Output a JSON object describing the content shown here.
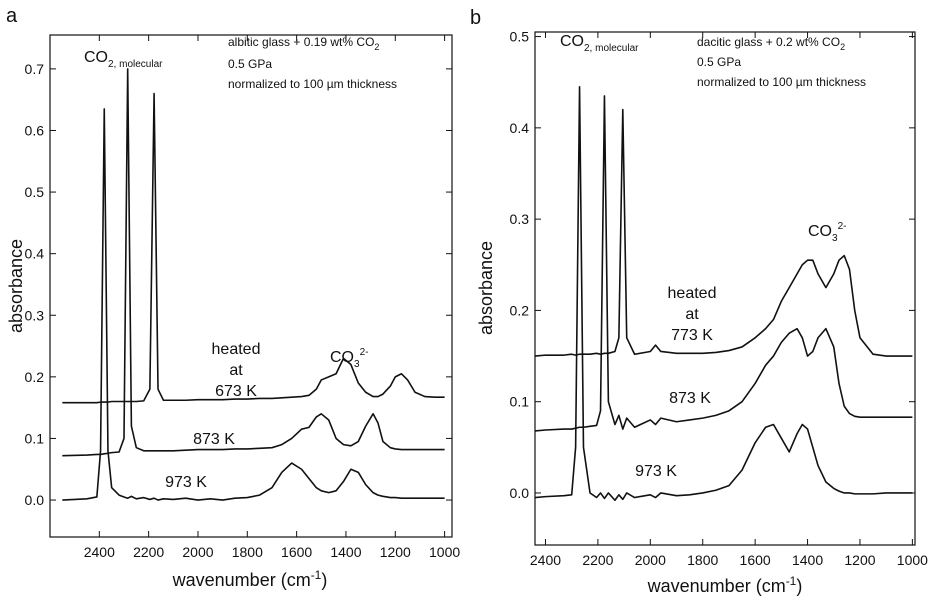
{
  "chart_data": [
    {
      "type": "line",
      "panel_label": "a",
      "peak_label": {
        "text": "CO",
        "sub": "2, molecular"
      },
      "sample": {
        "text": "albitic glass + 0.19 wt% CO",
        "sub": "2"
      },
      "notes": [
        "0.5 GPa",
        "normalized to 100 µm thickness"
      ],
      "heated": [
        "heated",
        "at"
      ],
      "carbonate": {
        "text": "CO",
        "sub": "3",
        "sup": "2-"
      },
      "ylabel": "absorbance",
      "xlabel": {
        "text": "wavenumber (cm",
        "sup": "-1",
        "tail": ")"
      },
      "xlim": [
        2600,
        970
      ],
      "ylim": [
        -0.06,
        0.755
      ],
      "xticks": [
        2400,
        2200,
        2000,
        1800,
        1600,
        1400,
        1200,
        1000
      ],
      "yticks": [
        {
          "value": 0,
          "label": "0.0"
        },
        0.1,
        0.2,
        0.3,
        0.4,
        0.5,
        0.6,
        0.7
      ],
      "grid": false,
      "x": [
        2550,
        2450,
        2410,
        2395,
        2380,
        2365,
        2350,
        2320,
        2300,
        2285,
        2270,
        2250,
        2220,
        2195,
        2178,
        2162,
        2140,
        2100,
        2050,
        2000,
        1950,
        1900,
        1850,
        1800,
        1750,
        1700,
        1660,
        1620,
        1580,
        1550,
        1520,
        1500,
        1470,
        1440,
        1410,
        1380,
        1350,
        1320,
        1290,
        1270,
        1250,
        1220,
        1200,
        1175,
        1150,
        1120,
        1080,
        1040,
        1000
      ],
      "series": [
        {
          "name": "973 K",
          "color": "#111111",
          "values": [
            0.0,
            0.002,
            0.005,
            0.08,
            0.635,
            0.08,
            0.02,
            0.008,
            0.005,
            0.003,
            0.006,
            0.002,
            0.004,
            0.001,
            0.003,
            0.0,
            0.002,
            0.001,
            0.003,
            0.0,
            0.002,
            0.0,
            0.003,
            0.004,
            0.008,
            0.02,
            0.045,
            0.06,
            0.05,
            0.035,
            0.02,
            0.015,
            0.012,
            0.015,
            0.03,
            0.05,
            0.045,
            0.025,
            0.012,
            0.008,
            0.006,
            0.004,
            0.004,
            0.003,
            0.003,
            0.003,
            0.003,
            0.003,
            0.003
          ]
        },
        {
          "name": "873 K",
          "color": "#111111",
          "values": [
            0.072,
            0.073,
            0.074,
            0.074,
            0.075,
            0.076,
            0.077,
            0.078,
            0.1,
            0.7,
            0.12,
            0.085,
            0.08,
            0.08,
            0.08,
            0.08,
            0.08,
            0.08,
            0.081,
            0.082,
            0.082,
            0.082,
            0.083,
            0.083,
            0.084,
            0.085,
            0.09,
            0.1,
            0.115,
            0.118,
            0.135,
            0.14,
            0.13,
            0.1,
            0.09,
            0.088,
            0.095,
            0.12,
            0.14,
            0.125,
            0.095,
            0.085,
            0.083,
            0.082,
            0.082,
            0.082,
            0.082,
            0.082,
            0.082
          ]
        },
        {
          "name": "673 K",
          "color": "#111111",
          "values": [
            0.158,
            0.158,
            0.158,
            0.159,
            0.159,
            0.159,
            0.16,
            0.16,
            0.16,
            0.16,
            0.16,
            0.16,
            0.161,
            0.18,
            0.66,
            0.18,
            0.162,
            0.162,
            0.162,
            0.163,
            0.163,
            0.163,
            0.164,
            0.164,
            0.165,
            0.165,
            0.166,
            0.167,
            0.168,
            0.17,
            0.18,
            0.195,
            0.2,
            0.205,
            0.23,
            0.22,
            0.19,
            0.175,
            0.168,
            0.168,
            0.172,
            0.185,
            0.2,
            0.205,
            0.195,
            0.175,
            0.168,
            0.167,
            0.167
          ]
        }
      ]
    },
    {
      "type": "line",
      "panel_label": "b",
      "peak_label": {
        "text": "CO",
        "sub": "2, molecular"
      },
      "sample": {
        "text": "dacitic glass + 0.2 wt% CO",
        "sub": "2"
      },
      "notes": [
        "0.5 GPa",
        "normalized to 100 µm thickness"
      ],
      "heated": [
        "heated",
        "at"
      ],
      "carbonate": {
        "text": "CO",
        "sub": "3",
        "sup": "2-"
      },
      "ylabel": "absorbance",
      "xlabel": {
        "text": "wavenumber (cm",
        "sup": "-1",
        "tail": ")"
      },
      "xlim": [
        2440,
        990
      ],
      "ylim": [
        -0.057,
        0.505
      ],
      "xticks": [
        2400,
        2200,
        2000,
        1800,
        1600,
        1400,
        1200,
        1000
      ],
      "yticks": [
        {
          "value": 0,
          "label": "0.0"
        },
        0.1,
        0.2,
        0.3,
        0.4,
        0.5
      ],
      "grid": false,
      "x": [
        2440,
        2400,
        2330,
        2300,
        2285,
        2270,
        2255,
        2230,
        2205,
        2190,
        2175,
        2160,
        2135,
        2120,
        2105,
        2090,
        2060,
        2000,
        1980,
        1960,
        1900,
        1850,
        1800,
        1750,
        1700,
        1650,
        1600,
        1560,
        1530,
        1500,
        1470,
        1440,
        1420,
        1400,
        1380,
        1360,
        1330,
        1300,
        1280,
        1260,
        1240,
        1220,
        1200,
        1150,
        1100,
        1050,
        1000
      ],
      "series": [
        {
          "name": "973 K",
          "color": "#111111",
          "values": [
            -0.005,
            -0.004,
            -0.003,
            -0.002,
            0.05,
            0.445,
            0.05,
            0.0,
            -0.005,
            0.0,
            -0.006,
            0.0,
            -0.008,
            -0.002,
            -0.007,
            0.0,
            -0.005,
            -0.002,
            -0.005,
            0.0,
            -0.003,
            -0.002,
            0.0,
            0.003,
            0.008,
            0.025,
            0.055,
            0.072,
            0.075,
            0.06,
            0.045,
            0.065,
            0.075,
            0.07,
            0.05,
            0.03,
            0.012,
            0.005,
            0.002,
            0.0,
            0.0,
            -0.001,
            -0.001,
            -0.001,
            0.0,
            0.0,
            0.0
          ]
        },
        {
          "name": "873 K",
          "color": "#111111",
          "values": [
            0.068,
            0.069,
            0.07,
            0.07,
            0.071,
            0.072,
            0.072,
            0.073,
            0.074,
            0.09,
            0.435,
            0.1,
            0.075,
            0.085,
            0.07,
            0.082,
            0.072,
            0.08,
            0.075,
            0.082,
            0.078,
            0.08,
            0.082,
            0.085,
            0.09,
            0.1,
            0.12,
            0.14,
            0.15,
            0.165,
            0.175,
            0.18,
            0.17,
            0.15,
            0.155,
            0.17,
            0.18,
            0.16,
            0.12,
            0.095,
            0.087,
            0.084,
            0.083,
            0.083,
            0.083,
            0.083,
            0.083
          ]
        },
        {
          "name": "773 K",
          "color": "#111111",
          "values": [
            0.15,
            0.151,
            0.151,
            0.152,
            0.151,
            0.152,
            0.152,
            0.152,
            0.153,
            0.152,
            0.153,
            0.153,
            0.155,
            0.17,
            0.42,
            0.17,
            0.152,
            0.155,
            0.162,
            0.155,
            0.153,
            0.153,
            0.153,
            0.154,
            0.156,
            0.16,
            0.17,
            0.18,
            0.19,
            0.21,
            0.225,
            0.24,
            0.25,
            0.255,
            0.255,
            0.24,
            0.225,
            0.24,
            0.255,
            0.26,
            0.245,
            0.2,
            0.17,
            0.152,
            0.15,
            0.15,
            0.15
          ]
        }
      ]
    }
  ]
}
